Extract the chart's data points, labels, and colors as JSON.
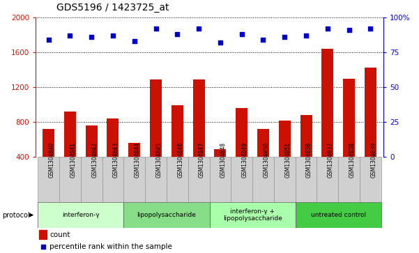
{
  "title": "GDS5196 / 1423725_at",
  "samples": [
    "GSM1304840",
    "GSM1304841",
    "GSM1304842",
    "GSM1304843",
    "GSM1304844",
    "GSM1304845",
    "GSM1304846",
    "GSM1304847",
    "GSM1304848",
    "GSM1304849",
    "GSM1304850",
    "GSM1304851",
    "GSM1304836",
    "GSM1304837",
    "GSM1304838",
    "GSM1304839"
  ],
  "counts": [
    720,
    920,
    760,
    840,
    560,
    1290,
    990,
    1290,
    490,
    960,
    720,
    820,
    880,
    1640,
    1300,
    1430
  ],
  "percentiles": [
    84,
    87,
    86,
    87,
    83,
    92,
    88,
    92,
    82,
    88,
    84,
    86,
    87,
    92,
    91,
    92
  ],
  "groups": [
    {
      "label": "interferon-γ",
      "start": 0,
      "end": 4,
      "color": "#ccffcc"
    },
    {
      "label": "lipopolysaccharide",
      "start": 4,
      "end": 8,
      "color": "#88dd88"
    },
    {
      "label": "interferon-γ +\nlipopolysaccharide",
      "start": 8,
      "end": 12,
      "color": "#aaffaa"
    },
    {
      "label": "untreated control",
      "start": 12,
      "end": 16,
      "color": "#44cc44"
    }
  ],
  "ylim_left": [
    400,
    2000
  ],
  "ylim_right": [
    0,
    100
  ],
  "yticks_left": [
    400,
    800,
    1200,
    1600,
    2000
  ],
  "yticks_right": [
    0,
    25,
    50,
    75,
    100
  ],
  "bar_color": "#cc1100",
  "dot_color": "#0000cc",
  "label_bg": "#d0d0d0"
}
